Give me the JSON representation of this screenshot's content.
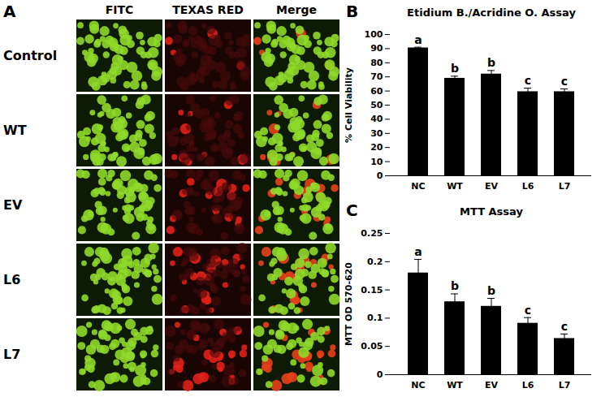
{
  "image_panel": {
    "panel": "A",
    "columns": [
      "FITC",
      "TEXAS RED",
      "Merge"
    ],
    "rows": [
      "Control",
      "WT",
      "EV",
      "L6",
      "L7"
    ]
  },
  "chart_data": [
    {
      "type": "bar",
      "panel": "B",
      "title": "Etidium B./Acridine O. Assay",
      "y_label": "% Cell Viability",
      "categories": [
        "NC",
        "WT",
        "EV",
        "L6",
        "L7"
      ],
      "values": [
        90.5,
        69,
        72,
        59.5,
        59.5
      ],
      "errors": [
        0.5,
        1.5,
        2.5,
        2.5,
        2
      ],
      "annotations": [
        "a",
        "b",
        "b",
        "c",
        "c"
      ],
      "color": "#000000",
      "ylim": [
        0,
        100
      ],
      "yticks": [
        0,
        10,
        20,
        30,
        40,
        50,
        60,
        70,
        80,
        90,
        100
      ],
      "grid": false
    },
    {
      "type": "bar",
      "panel": "C",
      "title": "MTT Assay",
      "y_label": "MTT OD 570-620",
      "categories": [
        "NC",
        "WT",
        "EV",
        "L6",
        "L7"
      ],
      "values": [
        0.18,
        0.129,
        0.121,
        0.091,
        0.064
      ],
      "errors": [
        0.024,
        0.014,
        0.014,
        0.01,
        0.008
      ],
      "annotations": [
        "a",
        "b",
        "b",
        "c",
        "c"
      ],
      "color": "#000000",
      "ylim": [
        0,
        0.25
      ],
      "yticks": [
        0,
        0.05,
        0.1,
        0.15,
        0.2,
        0.25
      ],
      "grid": false
    }
  ]
}
